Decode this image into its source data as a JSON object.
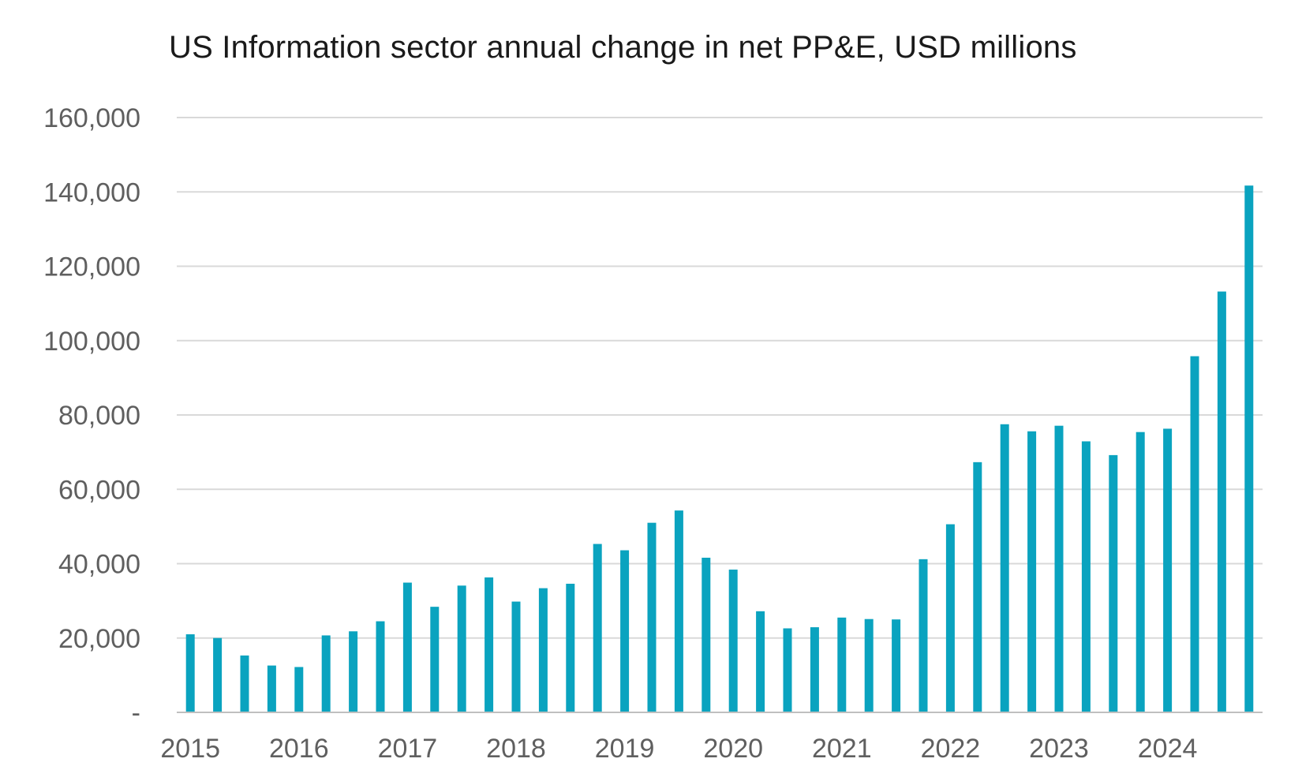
{
  "chart_data": {
    "type": "bar",
    "title": "US Information sector annual change in net PP&E, USD millions",
    "xlabel": "",
    "ylabel": "",
    "ylim": [
      0,
      160000
    ],
    "y_ticks": [
      0,
      20000,
      40000,
      60000,
      80000,
      100000,
      120000,
      140000,
      160000
    ],
    "y_tick_labels": [
      "-",
      "20,000",
      "40,000",
      "60,000",
      "80,000",
      "100,000",
      "120,000",
      "140,000",
      "160,000"
    ],
    "x_tick_labels": [
      "2015",
      "2016",
      "2017",
      "2018",
      "2019",
      "2020",
      "2021",
      "2022",
      "2023",
      "2024"
    ],
    "grid": true,
    "legend": "none",
    "bar_color": "#0aa3bf",
    "categories": [
      "2015 Q1",
      "2015 Q2",
      "2015 Q3",
      "2015 Q4",
      "2016 Q1",
      "2016 Q2",
      "2016 Q3",
      "2016 Q4",
      "2017 Q1",
      "2017 Q2",
      "2017 Q3",
      "2017 Q4",
      "2018 Q1",
      "2018 Q2",
      "2018 Q3",
      "2018 Q4",
      "2019 Q1",
      "2019 Q2",
      "2019 Q3",
      "2019 Q4",
      "2020 Q1",
      "2020 Q2",
      "2020 Q3",
      "2020 Q4",
      "2021 Q1",
      "2021 Q2",
      "2021 Q3",
      "2021 Q4",
      "2022 Q1",
      "2022 Q2",
      "2022 Q3",
      "2022 Q4",
      "2023 Q1",
      "2023 Q2",
      "2023 Q3",
      "2023 Q4",
      "2024 Q1",
      "2024 Q2",
      "2024 Q3",
      "2024 Q4"
    ],
    "values": [
      21000,
      20000,
      15300,
      12600,
      12200,
      20700,
      21800,
      24500,
      34900,
      28400,
      34100,
      36300,
      29800,
      33400,
      34600,
      45300,
      43600,
      51000,
      54300,
      41600,
      38400,
      27200,
      22600,
      22900,
      25500,
      25100,
      25000,
      41200,
      50600,
      67300,
      77500,
      75600,
      77100,
      72900,
      69200,
      75400,
      76300,
      95800,
      113200,
      141700
    ]
  }
}
